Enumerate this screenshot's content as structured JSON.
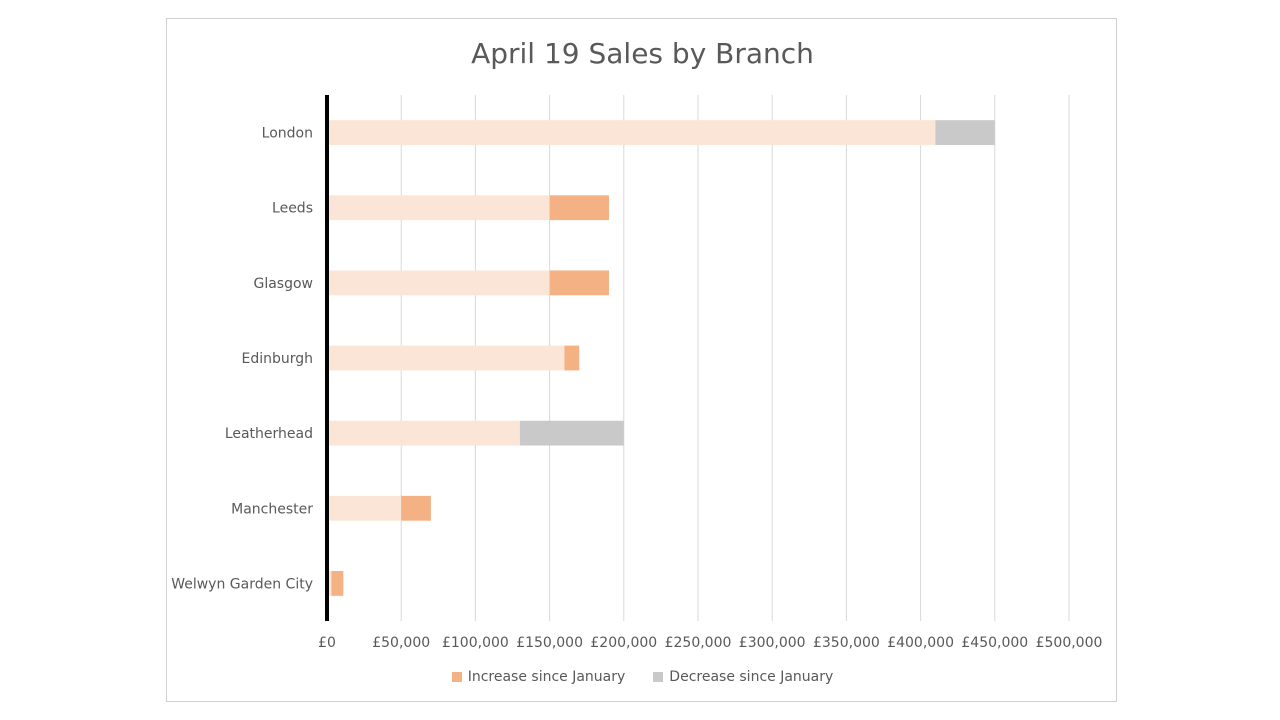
{
  "chart_data": {
    "type": "bar",
    "orientation": "horizontal",
    "stacked": true,
    "title": "April 19 Sales by Branch",
    "categories": [
      "London",
      "Leeds",
      "Glasgow",
      "Edinburgh",
      "Leatherhead",
      "Manchester",
      "Welwyn Garden City"
    ],
    "series": [
      {
        "values": [
          410000,
          150000,
          150000,
          160000,
          130000,
          50000,
          3000
        ],
        "color": "#FBE5D6"
      },
      {
        "name": "Increase since January",
        "values": [
          0,
          40000,
          40000,
          10000,
          0,
          20000,
          8000
        ],
        "color": "#F4B183"
      },
      {
        "name": "Decrease since January",
        "values": [
          40000,
          0,
          0,
          0,
          70000,
          0,
          0
        ],
        "color": "#C9C9C9"
      }
    ],
    "xlim": [
      0,
      500000
    ],
    "xticks": [
      "£0",
      "£50,000",
      "£100,000",
      "£150,000",
      "£200,000",
      "£250,000",
      "£300,000",
      "£350,000",
      "£400,000",
      "£450,000",
      "£500,000"
    ],
    "grid": "vertical",
    "legend": "bottom",
    "legend_entries": [
      "Increase since January",
      "Decrease since January"
    ]
  }
}
